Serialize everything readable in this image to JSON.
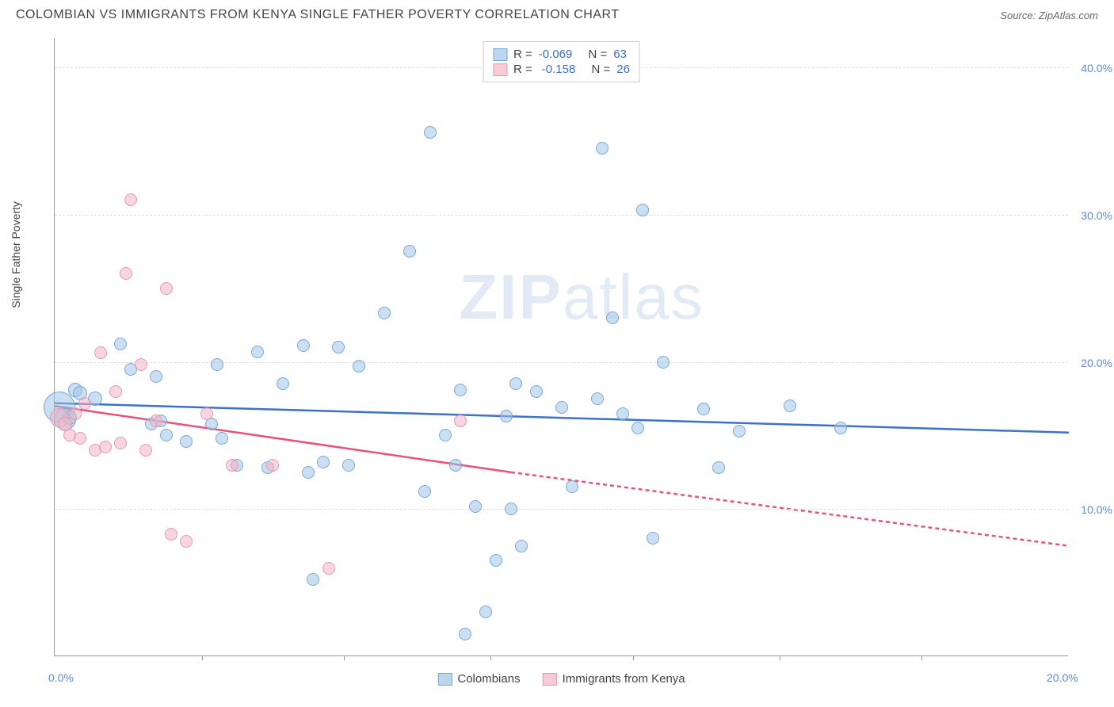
{
  "header": {
    "title": "COLOMBIAN VS IMMIGRANTS FROM KENYA SINGLE FATHER POVERTY CORRELATION CHART",
    "source_label": "Source:",
    "source_name": "ZipAtlas.com"
  },
  "chart": {
    "type": "scatter",
    "y_axis_title": "Single Father Poverty",
    "watermark_bold": "ZIP",
    "watermark_rest": "atlas",
    "xlim": [
      0,
      20
    ],
    "ylim": [
      0,
      42
    ],
    "x_ticks_labels": [
      {
        "x": 0,
        "label": "0.0%"
      },
      {
        "x": 20,
        "label": "20.0%"
      }
    ],
    "x_ticks_minor": [
      2.9,
      5.7,
      8.6,
      11.4,
      14.3,
      17.1
    ],
    "y_gridlines": [
      {
        "y": 10,
        "label": "10.0%"
      },
      {
        "y": 20,
        "label": "20.0%"
      },
      {
        "y": 30,
        "label": "30.0%"
      },
      {
        "y": 40,
        "label": "40.0%"
      }
    ],
    "background_color": "#ffffff",
    "grid_color": "#dddddd",
    "series": [
      {
        "name": "Colombians",
        "color_fill": "rgba(161,196,232,0.55)",
        "color_stroke": "#7aa8d8",
        "line_color": "#3b72c4",
        "R": "-0.069",
        "N": "63",
        "trend": {
          "x1": 0,
          "y1": 17.2,
          "x2": 20,
          "y2": 15.2
        },
        "points": [
          {
            "x": 0.1,
            "y": 16.9,
            "r": 20
          },
          {
            "x": 0.2,
            "y": 16.1,
            "r": 14
          },
          {
            "x": 0.4,
            "y": 18.1,
            "r": 9
          },
          {
            "x": 0.5,
            "y": 17.9,
            "r": 9
          },
          {
            "x": 0.8,
            "y": 17.5,
            "r": 9
          },
          {
            "x": 0.3,
            "y": 16.2,
            "r": 9
          },
          {
            "x": 1.3,
            "y": 21.2,
            "r": 8
          },
          {
            "x": 1.5,
            "y": 19.5,
            "r": 8
          },
          {
            "x": 1.9,
            "y": 15.8,
            "r": 8
          },
          {
            "x": 2.0,
            "y": 19.0,
            "r": 8
          },
          {
            "x": 2.1,
            "y": 16.0,
            "r": 8
          },
          {
            "x": 2.2,
            "y": 15.0,
            "r": 8
          },
          {
            "x": 2.6,
            "y": 14.6,
            "r": 8
          },
          {
            "x": 3.1,
            "y": 15.8,
            "r": 8
          },
          {
            "x": 3.2,
            "y": 19.8,
            "r": 8
          },
          {
            "x": 3.3,
            "y": 14.8,
            "r": 8
          },
          {
            "x": 3.6,
            "y": 13.0,
            "r": 8
          },
          {
            "x": 4.0,
            "y": 20.7,
            "r": 8
          },
          {
            "x": 4.2,
            "y": 12.8,
            "r": 8
          },
          {
            "x": 4.5,
            "y": 18.5,
            "r": 8
          },
          {
            "x": 4.9,
            "y": 21.1,
            "r": 8
          },
          {
            "x": 5.0,
            "y": 12.5,
            "r": 8
          },
          {
            "x": 5.1,
            "y": 5.2,
            "r": 8
          },
          {
            "x": 5.3,
            "y": 13.2,
            "r": 8
          },
          {
            "x": 5.6,
            "y": 21.0,
            "r": 8
          },
          {
            "x": 5.8,
            "y": 13.0,
            "r": 8
          },
          {
            "x": 6.0,
            "y": 19.7,
            "r": 8
          },
          {
            "x": 6.5,
            "y": 23.3,
            "r": 8
          },
          {
            "x": 7.0,
            "y": 27.5,
            "r": 8
          },
          {
            "x": 7.3,
            "y": 11.2,
            "r": 8
          },
          {
            "x": 7.4,
            "y": 35.6,
            "r": 8
          },
          {
            "x": 7.7,
            "y": 15.0,
            "r": 8
          },
          {
            "x": 7.9,
            "y": 13.0,
            "r": 8
          },
          {
            "x": 8.0,
            "y": 18.1,
            "r": 8
          },
          {
            "x": 8.1,
            "y": 1.5,
            "r": 8
          },
          {
            "x": 8.3,
            "y": 10.2,
            "r": 8
          },
          {
            "x": 8.5,
            "y": 3.0,
            "r": 8
          },
          {
            "x": 8.7,
            "y": 6.5,
            "r": 8
          },
          {
            "x": 8.9,
            "y": 16.3,
            "r": 8
          },
          {
            "x": 9.0,
            "y": 10.0,
            "r": 8
          },
          {
            "x": 9.1,
            "y": 18.5,
            "r": 8
          },
          {
            "x": 9.2,
            "y": 7.5,
            "r": 8
          },
          {
            "x": 9.5,
            "y": 18.0,
            "r": 8
          },
          {
            "x": 10.0,
            "y": 16.9,
            "r": 8
          },
          {
            "x": 10.2,
            "y": 11.5,
            "r": 8
          },
          {
            "x": 10.7,
            "y": 17.5,
            "r": 8
          },
          {
            "x": 10.8,
            "y": 34.5,
            "r": 8
          },
          {
            "x": 11.0,
            "y": 23.0,
            "r": 8
          },
          {
            "x": 11.2,
            "y": 16.5,
            "r": 8
          },
          {
            "x": 11.5,
            "y": 15.5,
            "r": 8
          },
          {
            "x": 11.6,
            "y": 30.3,
            "r": 8
          },
          {
            "x": 11.8,
            "y": 8.0,
            "r": 8
          },
          {
            "x": 12.0,
            "y": 20.0,
            "r": 8
          },
          {
            "x": 12.8,
            "y": 16.8,
            "r": 8
          },
          {
            "x": 13.1,
            "y": 12.8,
            "r": 8
          },
          {
            "x": 13.5,
            "y": 15.3,
            "r": 8
          },
          {
            "x": 14.5,
            "y": 17.0,
            "r": 8
          },
          {
            "x": 15.5,
            "y": 15.5,
            "r": 8
          }
        ]
      },
      {
        "name": "Immigrants from Kenya",
        "color_fill": "rgba(244,180,196,0.55)",
        "color_stroke": "#e49aae",
        "line_color": "#e6537a",
        "R": "-0.158",
        "N": "26",
        "trend_solid": {
          "x1": 0,
          "y1": 17.0,
          "x2": 9,
          "y2": 12.5
        },
        "trend_dashed": {
          "x1": 9,
          "y1": 12.5,
          "x2": 20,
          "y2": 7.5
        },
        "points": [
          {
            "x": 0.1,
            "y": 16.2,
            "r": 12
          },
          {
            "x": 0.2,
            "y": 15.8,
            "r": 9
          },
          {
            "x": 0.3,
            "y": 15.0,
            "r": 8
          },
          {
            "x": 0.4,
            "y": 16.5,
            "r": 8
          },
          {
            "x": 0.5,
            "y": 14.8,
            "r": 8
          },
          {
            "x": 0.6,
            "y": 17.2,
            "r": 8
          },
          {
            "x": 0.8,
            "y": 14.0,
            "r": 8
          },
          {
            "x": 0.9,
            "y": 20.6,
            "r": 8
          },
          {
            "x": 1.0,
            "y": 14.2,
            "r": 8
          },
          {
            "x": 1.2,
            "y": 18.0,
            "r": 8
          },
          {
            "x": 1.3,
            "y": 14.5,
            "r": 8
          },
          {
            "x": 1.4,
            "y": 26.0,
            "r": 8
          },
          {
            "x": 1.5,
            "y": 31.0,
            "r": 8
          },
          {
            "x": 1.7,
            "y": 19.8,
            "r": 8
          },
          {
            "x": 1.8,
            "y": 14.0,
            "r": 8
          },
          {
            "x": 2.0,
            "y": 16.0,
            "r": 8
          },
          {
            "x": 2.2,
            "y": 25.0,
            "r": 8
          },
          {
            "x": 2.3,
            "y": 8.3,
            "r": 8
          },
          {
            "x": 2.6,
            "y": 7.8,
            "r": 8
          },
          {
            "x": 3.0,
            "y": 16.5,
            "r": 8
          },
          {
            "x": 3.5,
            "y": 13.0,
            "r": 8
          },
          {
            "x": 4.3,
            "y": 13.0,
            "r": 8
          },
          {
            "x": 5.4,
            "y": 6.0,
            "r": 8
          },
          {
            "x": 8.0,
            "y": 16.0,
            "r": 8
          }
        ]
      }
    ],
    "legend_top": {
      "r_prefix": "R =",
      "n_prefix": "N ="
    },
    "legend_bottom": [
      {
        "swatch": "blue",
        "label": "Colombians"
      },
      {
        "swatch": "pink",
        "label": "Immigrants from Kenya"
      }
    ]
  }
}
